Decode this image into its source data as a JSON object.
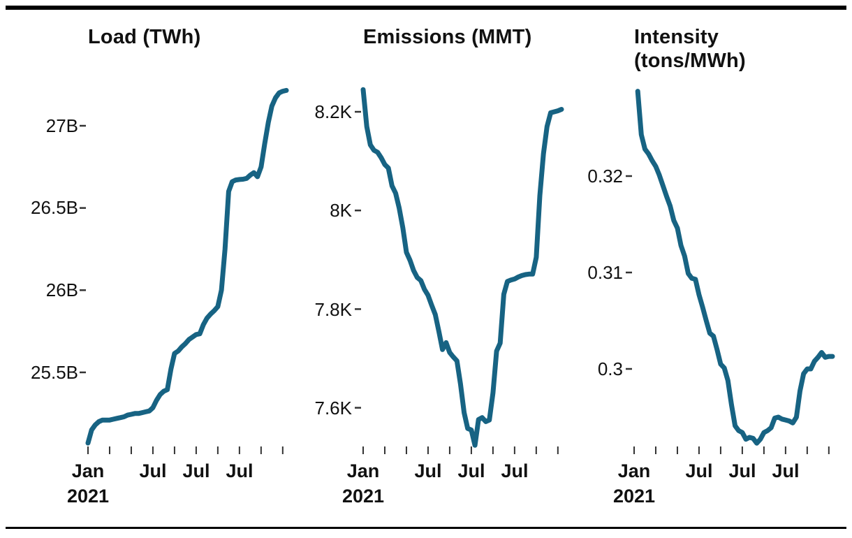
{
  "figure": {
    "kind": "small-multiples line chart, 3 facets",
    "period_note": "monthly series from Jan 2021, ticks every 6 months",
    "accent_color": "#176383",
    "text_color": "#111111",
    "rule_color": "#000000"
  },
  "chart_data": [
    {
      "type": "line",
      "title": "Load (TWh)",
      "title_lines": [
        "Load (TWh)",
        ""
      ],
      "x_start": "Jan 2021",
      "x_tick_labels": [
        "Jan",
        "Jul",
        "Jul",
        "Jul"
      ],
      "x_year_label": "2021",
      "x_label_month_indices": [
        0,
        18,
        30,
        42
      ],
      "y_tick_labels": [
        "27B",
        "26.5B",
        "26B",
        "25.5B"
      ],
      "y_tick_values": [
        27,
        26.5,
        26,
        25.5
      ],
      "ylim": [
        25.05,
        27.25
      ],
      "series_color": "#176383",
      "values": [
        25.07,
        25.15,
        25.18,
        25.2,
        25.21,
        25.21,
        25.21,
        25.215,
        25.22,
        25.225,
        25.23,
        25.24,
        25.245,
        25.25,
        25.25,
        25.255,
        25.26,
        25.265,
        25.285,
        25.33,
        25.365,
        25.385,
        25.395,
        25.52,
        25.615,
        25.63,
        25.655,
        25.675,
        25.7,
        25.715,
        25.73,
        25.735,
        25.79,
        25.83,
        25.855,
        25.875,
        25.9,
        26.0,
        26.25,
        26.6,
        26.66,
        26.67,
        26.673,
        26.675,
        26.68,
        26.7,
        26.715,
        26.69,
        26.75,
        26.89,
        27.02,
        27.12,
        27.17,
        27.2,
        27.21,
        27.215
      ]
    },
    {
      "type": "line",
      "title": "Emissions (MMT)",
      "title_lines": [
        "Emissions (MMT)",
        ""
      ],
      "x_start": "Jan 2021",
      "x_tick_labels": [
        "Jan",
        "Jul",
        "Jul",
        "Jul"
      ],
      "x_year_label": "2021",
      "x_label_month_indices": [
        0,
        18,
        30,
        42
      ],
      "y_tick_labels": [
        "8.2K",
        "8K",
        "7.8K",
        "7.6K"
      ],
      "y_tick_values": [
        8.2,
        8.0,
        7.8,
        7.6
      ],
      "ylim": [
        7.5,
        8.26
      ],
      "series_color": "#176383",
      "values": [
        8.245,
        8.17,
        8.133,
        8.122,
        8.118,
        8.107,
        8.093,
        8.086,
        8.05,
        8.035,
        8.005,
        7.965,
        7.915,
        7.899,
        7.878,
        7.864,
        7.858,
        7.84,
        7.828,
        7.808,
        7.789,
        7.755,
        7.718,
        7.732,
        7.712,
        7.703,
        7.695,
        7.648,
        7.59,
        7.558,
        7.555,
        7.524,
        7.576,
        7.58,
        7.572,
        7.575,
        7.63,
        7.715,
        7.731,
        7.83,
        7.856,
        7.859,
        7.861,
        7.865,
        7.868,
        7.87,
        7.871,
        7.871,
        7.905,
        8.03,
        8.115,
        8.17,
        8.198,
        8.2,
        8.202,
        8.205
      ]
    },
    {
      "type": "line",
      "title": "Intensity (tons/MWh)",
      "title_lines": [
        "Intensity",
        "(tons/MWh)"
      ],
      "x_start": "Jan 2021",
      "x_tick_labels": [
        "Jan",
        "Jul",
        "Jul",
        "Jul"
      ],
      "x_year_label": "2021",
      "x_label_month_indices": [
        0,
        18,
        30,
        42
      ],
      "y_tick_labels": [
        "0.32",
        "0.31",
        "0.3"
      ],
      "y_tick_values": [
        0.32,
        0.31,
        0.3
      ],
      "ylim": [
        0.291,
        0.33
      ],
      "series_color": "#176383",
      "values": [
        null,
        0.3288,
        0.3243,
        0.3228,
        0.3223,
        0.3216,
        0.321,
        0.3201,
        0.319,
        0.3179,
        0.3169,
        0.3154,
        0.3146,
        0.3128,
        0.3117,
        0.3099,
        0.3094,
        0.3093,
        0.3077,
        0.3064,
        0.305,
        0.3037,
        0.3034,
        0.302,
        0.3005,
        0.3001,
        0.2988,
        0.2963,
        0.2941,
        0.2936,
        0.2934,
        0.2927,
        0.2929,
        0.2928,
        0.2923,
        0.2927,
        0.2934,
        0.2936,
        0.2939,
        0.2949,
        0.295,
        0.2948,
        0.2947,
        0.2946,
        0.2944,
        0.295,
        0.2977,
        0.2995,
        0.3,
        0.3,
        0.3008,
        0.3012,
        0.3017,
        0.3012,
        0.3013,
        0.3013
      ]
    }
  ]
}
